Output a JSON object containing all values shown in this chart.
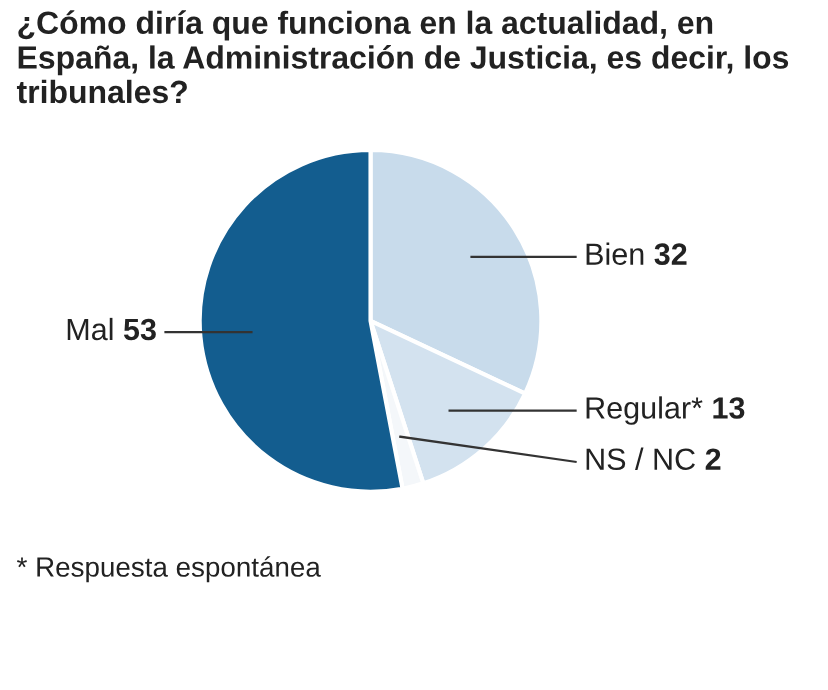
{
  "chart_data": {
    "type": "pie",
    "title": "¿Cómo diría que funciona en la actualidad, en España, la Administración de Justicia, es decir, los tribunales?",
    "categories": [
      "Bien",
      "Regular*",
      "NS / NC",
      "Mal"
    ],
    "values": [
      32,
      13,
      2,
      53
    ],
    "colors": [
      "#c8dbeb",
      "#d3e2ef",
      "#f4f7fa",
      "#135d8f"
    ],
    "data_labels": true,
    "annotations": [
      "* Respuesta espontánea"
    ]
  }
}
